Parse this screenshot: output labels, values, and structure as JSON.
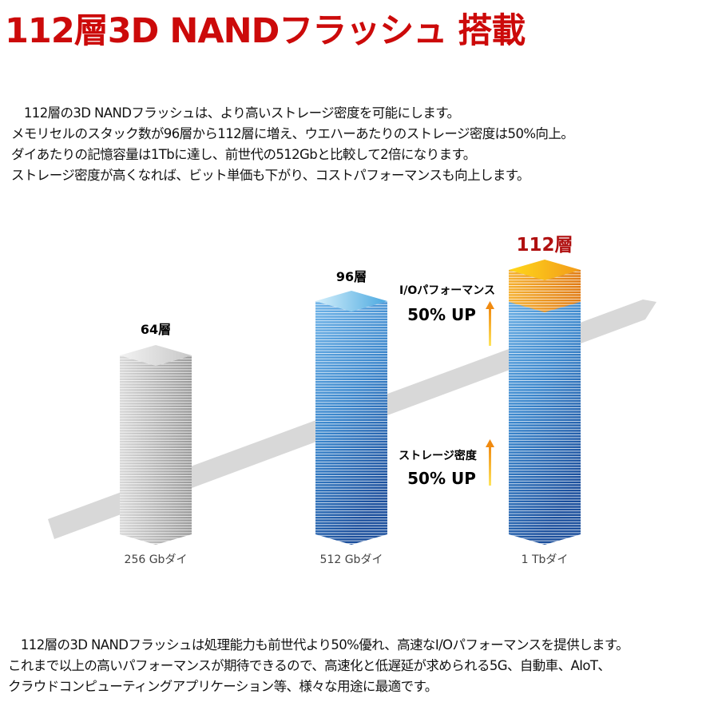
{
  "title": "112層3D NANDフラッシュ 搭載",
  "intro": [
    "　112層の3D NANDフラッシュは、より高いストレージ密度を可能にします。",
    "メモリセルのスタック数が96層から112層に増え、ウエハーあたりのストレージ密度は50%向上。",
    "ダイあたりの記憶容量は1Tbに達し、前世代の512Gbと比較して2倍になります。",
    "ストレージ密度が高くなれば、ビット単価も下がり、コストパフォーマンスも向上します。"
  ],
  "columns": [
    {
      "layers": "64層",
      "label": "256 Gbダイ",
      "color": "gray"
    },
    {
      "layers": "96層",
      "label": "512 Gbダイ",
      "color": "blue"
    },
    {
      "layers": "112層",
      "label": "1 Tbダイ",
      "color": "blue-orange"
    }
  ],
  "callouts": {
    "io_title": "I/Oパフォーマンス",
    "io_value": "50% UP",
    "density_title": "ストレージ密度",
    "density_value": "50% UP"
  },
  "outro": [
    "　112層の3D NANDフラッシュは処理能力も前世代より50%優れ、高速なI/Oパフォーマンスを提供します。",
    "これまで以上の高いパフォーマンスが期待できるので、高速化と低遅延が求められる5G、自動車、AIoT、",
    "クラウドコンピューティングアプリケーション等、様々な用途に最適です。"
  ],
  "colors": {
    "title": "#cc0a0a",
    "accent_112": "#b01010",
    "blue": "#2a6db5",
    "orange": "#f0901a"
  }
}
